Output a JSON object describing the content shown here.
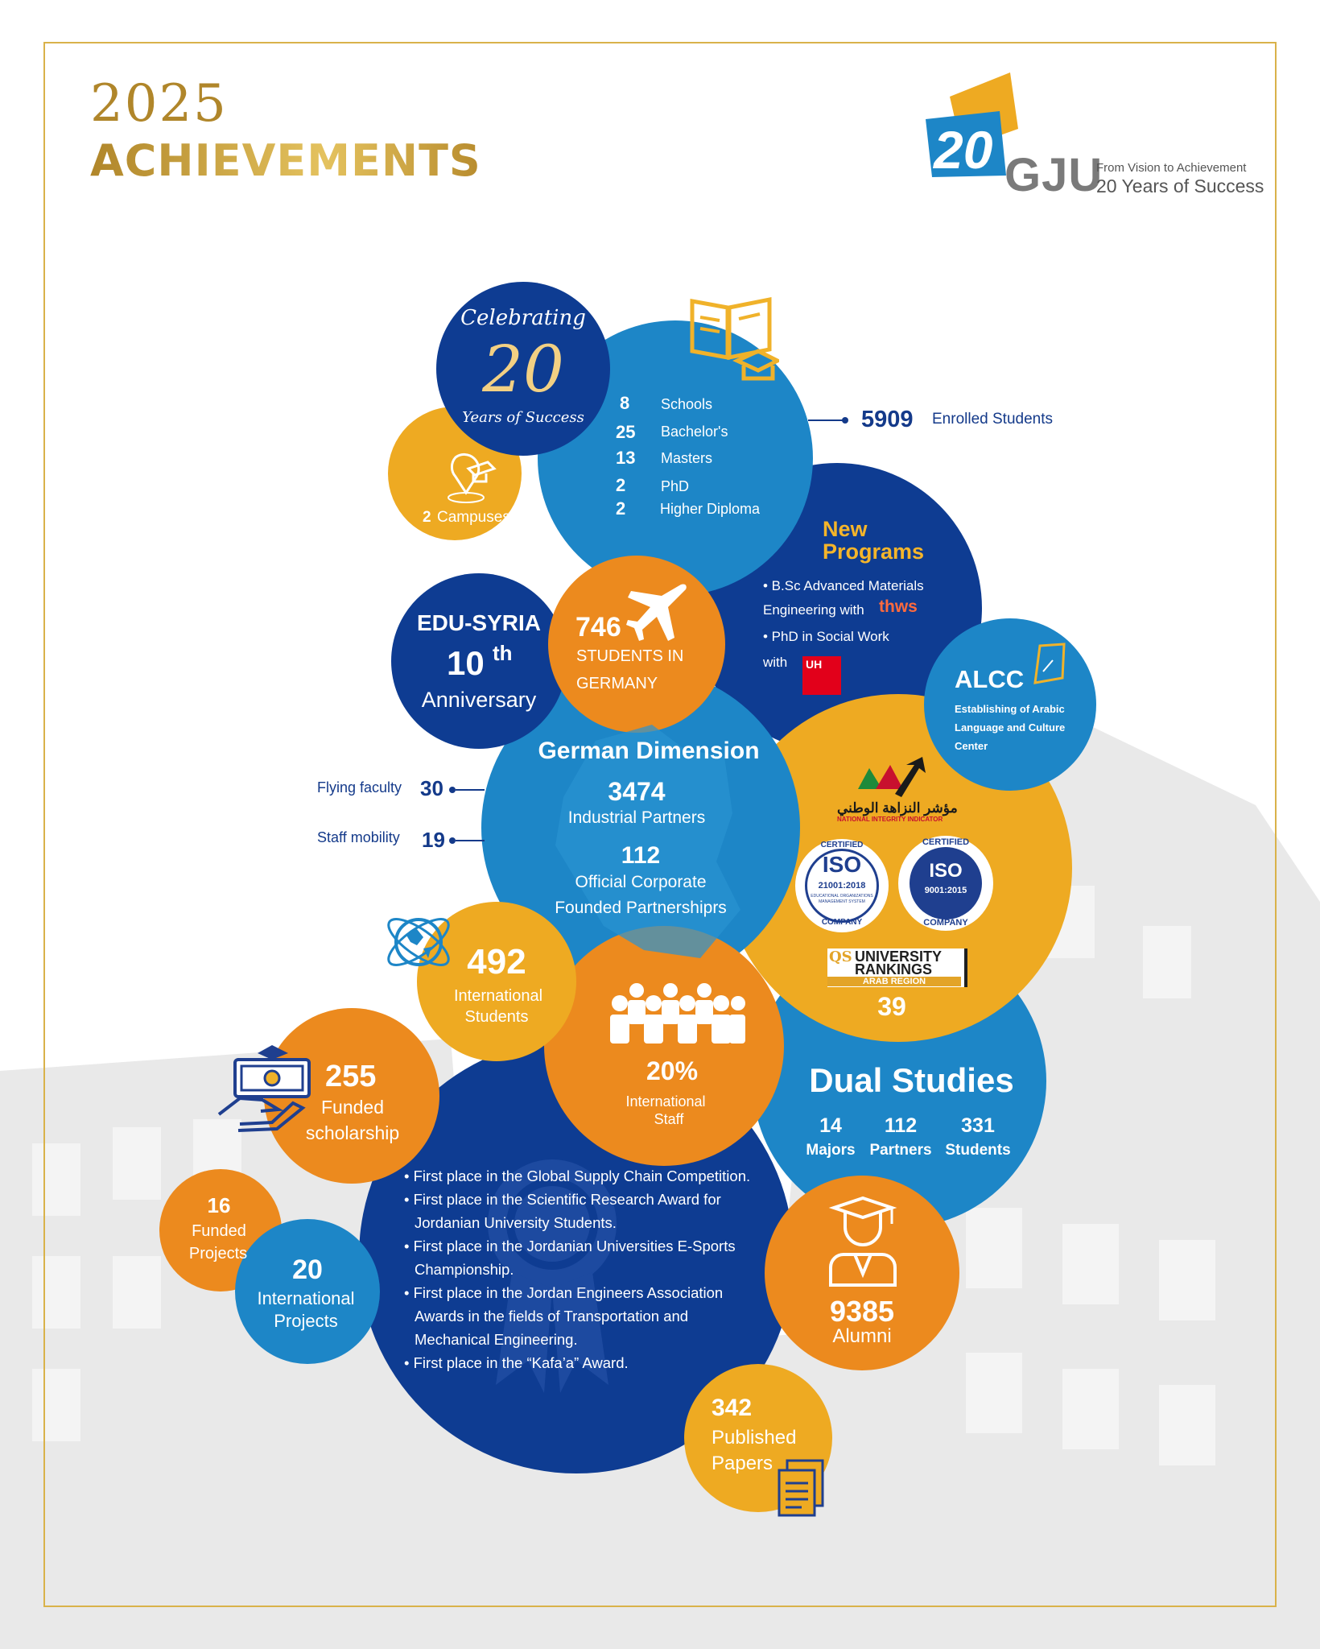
{
  "header": {
    "year": "2025",
    "title": "ACHIEVEMENTS"
  },
  "logo": {
    "number": "20",
    "name": "GJU",
    "tagline1": "From Vision to Achievement",
    "tagline2": "20 Years of Success"
  },
  "celebrating": {
    "line1": "Celebrating",
    "number": "20",
    "line2": "Years of Success"
  },
  "campuses": {
    "count": "2",
    "label": "Campuses"
  },
  "programs": {
    "items": [
      {
        "value": "8",
        "label": "Schools"
      },
      {
        "value": "25",
        "label": "Bachelor's"
      },
      {
        "value": "13",
        "label": "Masters"
      },
      {
        "value": "2",
        "label": "PhD"
      },
      {
        "value": "2",
        "label": "Higher Diploma"
      }
    ]
  },
  "enrolled": {
    "value": "5909",
    "label": "Enrolled Students"
  },
  "new_programs": {
    "title1": "New",
    "title2": "Programs",
    "item1a": "• B.Sc Advanced Materials",
    "item1b": "Engineering with",
    "partner1": "thws",
    "item2a": "• PhD in Social Work",
    "item2b": "with",
    "partner2": "UH"
  },
  "alcc": {
    "title": "ALCC",
    "line1": "Establishing of Arabic",
    "line2": "Language and Culture",
    "line3": "Center"
  },
  "edu_syria": {
    "title": "EDU-SYRIA",
    "number": "10",
    "suffix": "th",
    "label": "Anniversary"
  },
  "germany": {
    "value": "746",
    "line1": "STUDENTS IN",
    "line2": "GERMANY"
  },
  "german_dimension": {
    "title": "German Dimension",
    "v1": "3474",
    "l1": "Industrial Partners",
    "v2": "112",
    "l2a": "Official Corporate",
    "l2b": "Founded Partnershiprs"
  },
  "side_stats": [
    {
      "label": "Flying faculty",
      "value": "30"
    },
    {
      "label": "Staff mobility",
      "value": "19"
    }
  ],
  "integrity": {
    "arabic": "مؤشر النزاهة الوطني",
    "english": "NATIONAL INTEGRITY INDICATOR"
  },
  "iso1": {
    "top": "CERTIFIED",
    "name": "ISO",
    "code": "21001:2018",
    "sub1": "EDUCATIONAL ORGANIZATIONS",
    "sub2": "MANAGEMENT SYSTEM",
    "bottom": "COMPANY"
  },
  "iso2": {
    "top": "CERTIFIED",
    "name": "ISO",
    "code": "9001:2015",
    "bottom": "COMPANY"
  },
  "qs": {
    "qs": "QS",
    "line1": "UNIVERSITY",
    "line2": "RANKINGS",
    "line3": "ARAB REGION",
    "rank": "39"
  },
  "intl_students": {
    "value": "492",
    "line1": "International",
    "line2": "Students"
  },
  "intl_staff": {
    "value": "20%",
    "line1": "International",
    "line2": "Staff"
  },
  "dual": {
    "title": "Dual Studies",
    "items": [
      {
        "value": "14",
        "label": "Majors"
      },
      {
        "value": "112",
        "label": "Partners"
      },
      {
        "value": "331",
        "label": "Students"
      }
    ]
  },
  "scholarship": {
    "value": "255",
    "line1": "Funded",
    "line2": "scholarship"
  },
  "awards": [
    [
      "• First place in the Global Supply Chain Competition."
    ],
    [
      "• First place in the Scientific Research Award for",
      "Jordanian University Students."
    ],
    [
      "• First place in the Jordanian Universities E-Sports",
      "Championship."
    ],
    [
      "• First place in the Jordan Engineers Association",
      "Awards in the fields of Transportation and",
      "Mechanical Engineering."
    ],
    [
      "• First place in the “Kafa’a” Award."
    ]
  ],
  "funded_projects": {
    "value": "16",
    "line1": "Funded",
    "line2": "Projects"
  },
  "intl_projects": {
    "value": "20",
    "line1": "International",
    "line2": "Projects"
  },
  "alumni": {
    "value": "9385",
    "label": "Alumni"
  },
  "papers": {
    "value": "342",
    "line1": "Published",
    "line2": "Papers"
  },
  "colors": {
    "navy": "#0e3c92",
    "blue": "#1d86c7",
    "gold": "#eeaa22",
    "orange": "#ec8a1e"
  }
}
